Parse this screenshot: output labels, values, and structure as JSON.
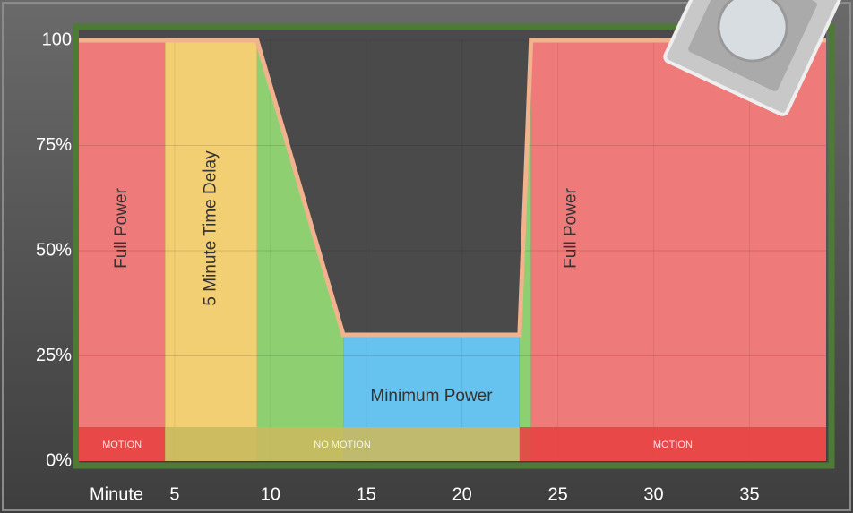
{
  "chart_data": {
    "type": "area",
    "x_label": "Minute",
    "xlim": [
      0,
      39
    ],
    "ylim": [
      0,
      100
    ],
    "xticks": [
      5,
      10,
      15,
      20,
      25,
      30,
      35
    ],
    "yticks": [
      0,
      25,
      50,
      75,
      100
    ],
    "ytick_labels": [
      "0%",
      "25%",
      "50%",
      "75%",
      "100"
    ],
    "x": [
      0,
      9.3,
      13.8,
      23,
      23.6,
      39
    ],
    "values": [
      100,
      100,
      30,
      30,
      100,
      100
    ],
    "line_color": "#f2b28e",
    "above_color": "#4a4a4a",
    "grid": true,
    "regions": [
      {
        "label": "Full Power",
        "x": [
          0,
          4.5
        ],
        "color": "#ef7a7a",
        "rotated": true
      },
      {
        "label": "5 Minute Time Delay",
        "x": [
          4.5,
          9.3
        ],
        "color": "#f2cf72",
        "rotated": true
      },
      {
        "x": [
          9.3,
          13.8
        ],
        "color": "#8ed071"
      },
      {
        "label": "Minimum Power",
        "x": [
          13.8,
          23
        ],
        "color": "#66c3ef",
        "rotated": false
      },
      {
        "x": [
          23,
          23.6
        ],
        "color": "#8ed071"
      },
      {
        "label": "Full Power",
        "x": [
          23.6,
          39
        ],
        "color": "#ef7a7a",
        "rotated": true
      }
    ],
    "bands": [
      {
        "label": "MOTION",
        "x": [
          0,
          4.5
        ],
        "color": "#e84343"
      },
      {
        "label": "NO MOTION",
        "x": [
          4.5,
          23
        ],
        "color": "#c9b95e"
      },
      {
        "label": "MOTION",
        "x": [
          23,
          39
        ],
        "color": "#e84343"
      }
    ]
  }
}
